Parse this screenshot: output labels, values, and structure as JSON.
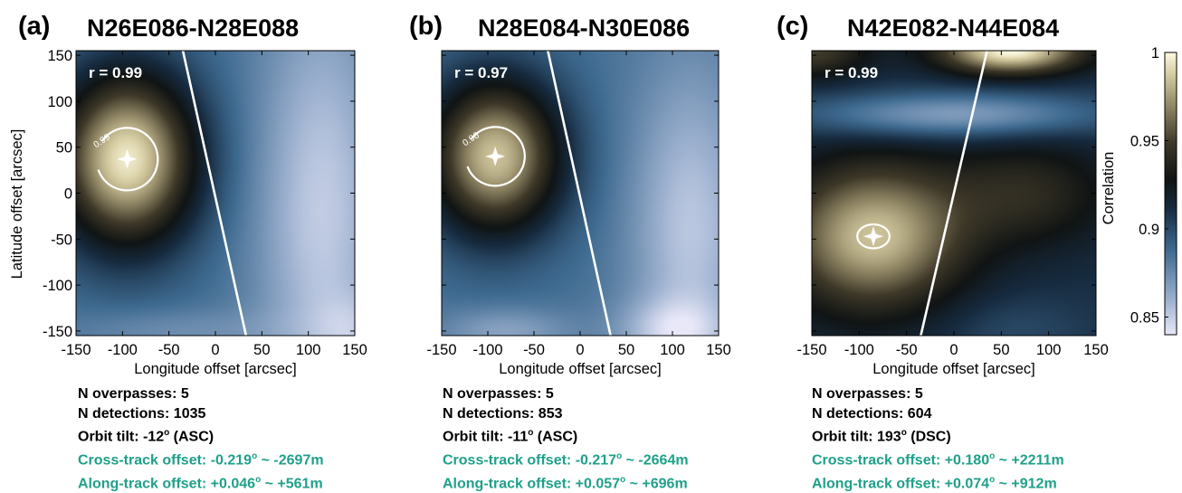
{
  "colors": {
    "stats_text": "#000000",
    "offset_text": "#1fa08a",
    "marker_and_lines": "#ffffff",
    "colormap_low": "#e8e8f8",
    "colormap_mid_low": "#3e6a90",
    "colormap_mid": "#101414",
    "colormap_mid_high": "#6e6650",
    "colormap_high": "#fdfbe4"
  },
  "chart_data": [
    {
      "type": "heatmap",
      "panel_label": "(a)",
      "title": "N26E086-N28E088",
      "xlabel": "Longitude offset [arcsec]",
      "ylabel": "Latitude offset [arcsec]",
      "xlim": [
        -150,
        150
      ],
      "ylim": [
        -155,
        155
      ],
      "xticks": [
        "-150",
        "-100",
        "-50",
        "0",
        "50",
        "100",
        "150"
      ],
      "yticks": [
        "150",
        "100",
        "50",
        "0",
        "-50",
        "-100",
        "-150"
      ],
      "r_label": "r = 0.99",
      "peak": {
        "x": -95,
        "y": 37
      },
      "contour": {
        "level": "0.99",
        "rx": 33,
        "ry": 34
      },
      "orbit_line": [
        [
          -35,
          155
        ],
        [
          33,
          -155
        ]
      ],
      "field": {
        "base": 0.885,
        "lobes": [
          {
            "x": -95,
            "y": 37,
            "a": 0.11,
            "sx": 75,
            "sy": 95
          },
          {
            "x": 115,
            "y": -20,
            "a": -0.035,
            "sx": 70,
            "sy": 240
          },
          {
            "x": 150,
            "y": -150,
            "a": -0.015,
            "sx": 40,
            "sy": 40
          },
          {
            "x": -40,
            "y": -150,
            "a": -0.012,
            "sx": 120,
            "sy": 25
          }
        ]
      },
      "stats": {
        "overpasses": "N overpasses: 5",
        "detections": "N detections: 1035",
        "tilt_prefix": "Orbit tilt: -12",
        "tilt_suffix": " (ASC)",
        "cross_prefix": "Cross-track offset: -0.219",
        "cross_suffix": " ~ -2697m",
        "along_prefix": "Along-track offset: +0.046",
        "along_suffix": " ~ +561m",
        "degree": "o"
      }
    },
    {
      "type": "heatmap",
      "panel_label": "(b)",
      "title": "N28E084-N30E086",
      "xlabel": "Longitude offset [arcsec]",
      "ylabel": "",
      "xlim": [
        -150,
        150
      ],
      "ylim": [
        -155,
        155
      ],
      "xticks": [
        "-150",
        "-100",
        "-50",
        "0",
        "50",
        "100",
        "150"
      ],
      "yticks": [],
      "r_label": "r = 0.97",
      "peak": {
        "x": -92,
        "y": 40
      },
      "contour": {
        "level": "0.96",
        "rx": 32,
        "ry": 32
      },
      "orbit_line": [
        [
          -35,
          155
        ],
        [
          33,
          -155
        ]
      ],
      "field": {
        "base": 0.885,
        "lobes": [
          {
            "x": -92,
            "y": 40,
            "a": 0.1,
            "sx": 72,
            "sy": 85
          },
          {
            "x": 120,
            "y": -40,
            "a": -0.033,
            "sx": 65,
            "sy": 180
          },
          {
            "x": 100,
            "y": -150,
            "a": -0.025,
            "sx": 60,
            "sy": 35
          },
          {
            "x": -80,
            "y": -150,
            "a": -0.02,
            "sx": 70,
            "sy": 25
          }
        ]
      },
      "stats": {
        "overpasses": "N overpasses: 5",
        "detections": "N detections: 853",
        "tilt_prefix": "Orbit tilt: -11",
        "tilt_suffix": " (ASC)",
        "cross_prefix": "Cross-track offset: -0.217",
        "cross_suffix": " ~ -2664m",
        "along_prefix": "Along-track offset: +0.057",
        "along_suffix": " ~ +696m",
        "degree": "o"
      }
    },
    {
      "type": "heatmap",
      "panel_label": "(c)",
      "title": "N42E082-N44E084",
      "xlabel": "Longitude offset [arcsec]",
      "ylabel": "",
      "xlim": [
        -150,
        150
      ],
      "ylim": [
        -155,
        155
      ],
      "xticks": [
        "-150",
        "-100",
        "-50",
        "0",
        "50",
        "100",
        "150"
      ],
      "yticks": [],
      "r_label": "r = 0.99",
      "peak": {
        "x": -85,
        "y": -47
      },
      "contour": {
        "level": "",
        "rx": 17,
        "ry": 13
      },
      "orbit_line": [
        [
          35,
          155
        ],
        [
          -35,
          -155
        ]
      ],
      "field": {
        "base": 0.91,
        "lobes": [
          {
            "x": -85,
            "y": -47,
            "a": 0.075,
            "sx": 95,
            "sy": 80
          },
          {
            "x": 80,
            "y": 0,
            "a": 0.03,
            "sx": 90,
            "sy": 60
          },
          {
            "x": 60,
            "y": 155,
            "a": 0.09,
            "sx": 75,
            "sy": 25
          },
          {
            "x": 0,
            "y": 85,
            "a": -0.045,
            "sx": 160,
            "sy": 25
          },
          {
            "x": -150,
            "y": 155,
            "a": 0.04,
            "sx": 60,
            "sy": 30
          },
          {
            "x": 60,
            "y": -150,
            "a": -0.01,
            "sx": 80,
            "sy": 40
          }
        ]
      },
      "stats": {
        "overpasses": "N overpasses: 5",
        "detections": "N detections: 604",
        "tilt_prefix": "Orbit tilt: 193",
        "tilt_suffix": " (DSC)",
        "cross_prefix": "Cross-track offset: +0.180",
        "cross_suffix": " ~ +2211m",
        "along_prefix": "Along-track offset: +0.074",
        "along_suffix": " ~ +912m",
        "degree": "o"
      }
    }
  ],
  "colorbar": {
    "label": "Correlation",
    "min": 0.84,
    "max": 1.0,
    "ticks": [
      "1",
      "0.95",
      "0.9",
      "0.85"
    ],
    "tick_values": [
      1.0,
      0.95,
      0.9,
      0.85
    ]
  }
}
